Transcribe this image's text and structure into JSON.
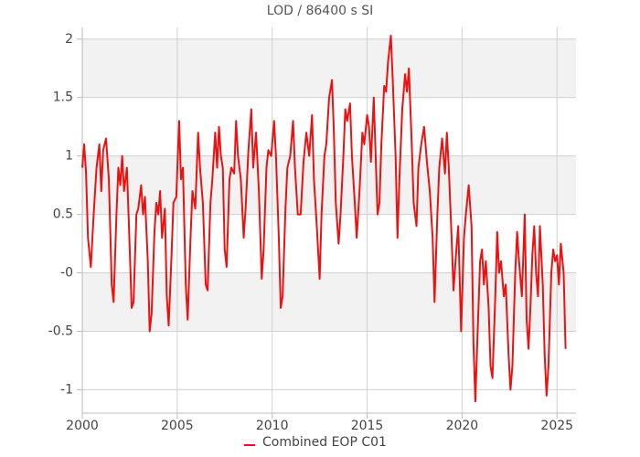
{
  "chart_data": {
    "type": "line",
    "title": "LOD / 86400 s SI",
    "x": [
      2000.0,
      2000.1,
      2000.2,
      2000.3,
      2000.45,
      2000.6,
      2000.75,
      2000.9,
      2001.0,
      2001.1,
      2001.25,
      2001.4,
      2001.55,
      2001.65,
      2001.8,
      2001.9,
      2002.0,
      2002.1,
      2002.2,
      2002.35,
      2002.5,
      2002.6,
      2002.7,
      2002.85,
      2002.95,
      2003.1,
      2003.2,
      2003.3,
      2003.45,
      2003.55,
      2003.65,
      2003.8,
      2003.9,
      2004.0,
      2004.1,
      2004.2,
      2004.35,
      2004.45,
      2004.55,
      2004.7,
      2004.8,
      2004.95,
      2005.1,
      2005.2,
      2005.3,
      2005.45,
      2005.55,
      2005.7,
      2005.8,
      2005.95,
      2006.1,
      2006.2,
      2006.35,
      2006.5,
      2006.6,
      2006.75,
      2006.85,
      2007.0,
      2007.1,
      2007.2,
      2007.3,
      2007.4,
      2007.5,
      2007.6,
      2007.75,
      2007.85,
      2008.0,
      2008.1,
      2008.2,
      2008.35,
      2008.5,
      2008.6,
      2008.75,
      2008.9,
      2009.0,
      2009.15,
      2009.3,
      2009.45,
      2009.55,
      2009.7,
      2009.8,
      2009.95,
      2010.1,
      2010.2,
      2010.35,
      2010.45,
      2010.55,
      2010.7,
      2010.8,
      2010.95,
      2011.1,
      2011.2,
      2011.35,
      2011.5,
      2011.65,
      2011.8,
      2011.95,
      2012.1,
      2012.2,
      2012.35,
      2012.5,
      2012.6,
      2012.75,
      2012.85,
      2013.0,
      2013.15,
      2013.25,
      2013.35,
      2013.5,
      2013.6,
      2013.75,
      2013.85,
      2013.95,
      2014.1,
      2014.2,
      2014.35,
      2014.45,
      2014.6,
      2014.75,
      2014.85,
      2015.0,
      2015.1,
      2015.2,
      2015.35,
      2015.45,
      2015.55,
      2015.65,
      2015.75,
      2015.9,
      2016.0,
      2016.1,
      2016.25,
      2016.35,
      2016.5,
      2016.6,
      2016.7,
      2016.85,
      2017.0,
      2017.1,
      2017.2,
      2017.35,
      2017.45,
      2017.6,
      2017.7,
      2017.85,
      2018.0,
      2018.15,
      2018.3,
      2018.45,
      2018.55,
      2018.7,
      2018.8,
      2018.95,
      2019.1,
      2019.2,
      2019.3,
      2019.45,
      2019.55,
      2019.7,
      2019.8,
      2019.95,
      2020.1,
      2020.2,
      2020.35,
      2020.5,
      2020.6,
      2020.7,
      2020.8,
      2020.95,
      2021.05,
      2021.15,
      2021.25,
      2021.4,
      2021.5,
      2021.6,
      2021.75,
      2021.85,
      2021.95,
      2022.05,
      2022.2,
      2022.3,
      2022.45,
      2022.55,
      2022.65,
      2022.8,
      2022.9,
      2023.0,
      2023.15,
      2023.3,
      2023.4,
      2023.5,
      2023.6,
      2023.7,
      2023.8,
      2023.9,
      2024.0,
      2024.1,
      2024.25,
      2024.35,
      2024.45,
      2024.55,
      2024.7,
      2024.8,
      2024.9,
      2025.0,
      2025.1,
      2025.2,
      2025.35,
      2025.45
    ],
    "series": [
      {
        "name": "Combined EOP C01",
        "color": "#ee1111",
        "values": [
          0.9,
          1.1,
          0.85,
          0.3,
          0.05,
          0.5,
          0.9,
          1.1,
          0.7,
          1.05,
          1.15,
          0.8,
          -0.1,
          -0.25,
          0.5,
          0.9,
          0.75,
          1.0,
          0.7,
          0.9,
          0.2,
          -0.3,
          -0.25,
          0.5,
          0.55,
          0.75,
          0.5,
          0.65,
          0.1,
          -0.5,
          -0.35,
          0.35,
          0.6,
          0.5,
          0.7,
          0.3,
          0.55,
          -0.2,
          -0.45,
          0.15,
          0.6,
          0.65,
          1.3,
          0.8,
          0.9,
          -0.1,
          -0.4,
          0.3,
          0.7,
          0.55,
          1.2,
          0.9,
          0.6,
          -0.1,
          -0.15,
          0.6,
          0.8,
          1.2,
          0.9,
          1.25,
          1.0,
          0.9,
          0.2,
          0.05,
          0.8,
          0.9,
          0.85,
          1.3,
          1.0,
          0.8,
          0.3,
          0.55,
          1.05,
          1.4,
          0.9,
          1.2,
          0.7,
          -0.05,
          0.2,
          0.9,
          1.05,
          1.0,
          1.3,
          1.0,
          0.3,
          -0.3,
          -0.2,
          0.55,
          0.9,
          1.0,
          1.3,
          0.9,
          0.5,
          0.5,
          0.95,
          1.2,
          1.0,
          1.35,
          0.8,
          0.4,
          -0.05,
          0.5,
          1.0,
          1.1,
          1.5,
          1.65,
          1.2,
          0.6,
          0.25,
          0.5,
          1.0,
          1.4,
          1.3,
          1.45,
          1.0,
          0.6,
          0.3,
          0.7,
          1.2,
          1.1,
          1.35,
          1.25,
          0.95,
          1.5,
          1.0,
          0.5,
          0.6,
          1.1,
          1.6,
          1.55,
          1.8,
          2.03,
          1.65,
          1.0,
          0.3,
          0.8,
          1.4,
          1.7,
          1.55,
          1.75,
          1.1,
          0.6,
          0.4,
          0.9,
          1.1,
          1.25,
          0.95,
          0.7,
          0.3,
          -0.25,
          0.5,
          0.9,
          1.15,
          0.85,
          1.2,
          0.9,
          0.3,
          -0.15,
          0.2,
          0.4,
          -0.5,
          0.3,
          0.5,
          0.75,
          0.4,
          -0.6,
          -1.1,
          -0.6,
          0.1,
          0.2,
          -0.1,
          0.1,
          -0.3,
          -0.8,
          -0.9,
          -0.2,
          0.35,
          0.0,
          0.1,
          -0.2,
          -0.1,
          -0.7,
          -1.0,
          -0.8,
          0.0,
          0.35,
          0.1,
          -0.2,
          0.5,
          -0.4,
          -0.65,
          -0.3,
          0.15,
          0.4,
          0.0,
          -0.2,
          0.4,
          -0.1,
          -0.7,
          -1.05,
          -0.8,
          0.0,
          0.2,
          0.1,
          0.15,
          -0.1,
          0.25,
          0.0,
          -0.65
        ]
      }
    ],
    "xlim": [
      2000,
      2026
    ],
    "ylim": [
      -1.2,
      2.1
    ],
    "xticks": [
      2000,
      2005,
      2010,
      2015,
      2020,
      2025
    ],
    "yticks": [
      -1,
      -0.5,
      {
        "value": 0,
        "label": "-0"
      },
      0.5,
      1,
      1.5,
      2
    ],
    "grid": true
  }
}
